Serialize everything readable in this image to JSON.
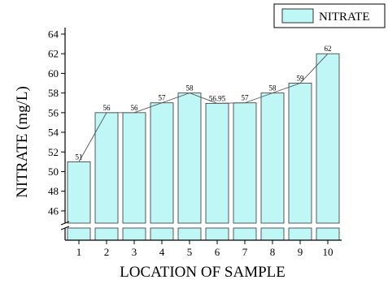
{
  "chart_data": {
    "type": "bar",
    "categories": [
      "1",
      "2",
      "3",
      "4",
      "5",
      "6",
      "7",
      "8",
      "9",
      "10"
    ],
    "values": [
      51,
      56,
      56,
      57,
      58,
      56.95,
      57,
      58,
      59,
      62
    ],
    "data_labels": [
      "51",
      "56",
      "56",
      "57",
      "58",
      "56.95",
      "57",
      "58",
      "59",
      "62"
    ],
    "series": [
      {
        "name": "NITRATE",
        "values": [
          51,
          56,
          56,
          57,
          58,
          56.95,
          57,
          58,
          59,
          62
        ]
      }
    ],
    "title": "",
    "xlabel": "LOCATION OF SAMPLE",
    "ylabel": "NITRATE (mg/L)",
    "ylim": [
      45,
      64
    ],
    "yticks": [
      46,
      48,
      50,
      52,
      54,
      56,
      58,
      60,
      62,
      64
    ],
    "axis_break": true,
    "line_overlay": true,
    "legend_position": "top-right",
    "grid": false,
    "colors": {
      "bar_fill": "#bff7f6",
      "bar_stroke": "#333333",
      "line": "#555555",
      "axis": "#000000"
    }
  }
}
